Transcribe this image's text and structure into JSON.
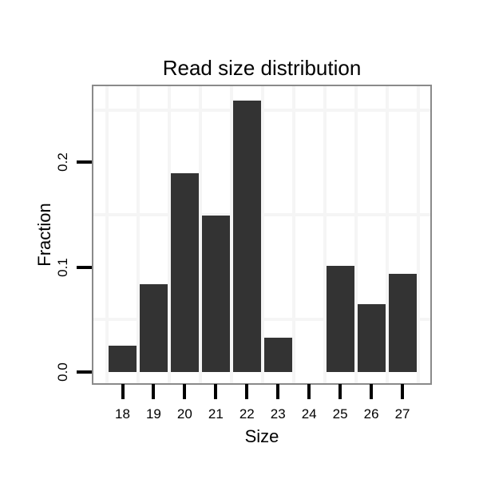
{
  "chart_data": {
    "type": "bar",
    "title": "Read size distribution",
    "xlabel": "Size",
    "ylabel": "Fraction",
    "categories": [
      "18",
      "19",
      "20",
      "21",
      "22",
      "23",
      "24",
      "25",
      "26",
      "27"
    ],
    "values": [
      0.025,
      0.084,
      0.19,
      0.149,
      0.259,
      0.033,
      0,
      0.101,
      0.065,
      0.094
    ],
    "ytick_labels": [
      "0.0",
      "0.1",
      "0.2"
    ],
    "yticks": [
      0.0,
      0.1,
      0.2
    ],
    "ylim": [
      0,
      0.273
    ],
    "minor_grid_y": [
      0.05,
      0.15,
      0.25
    ],
    "grid": "minor gridlines only, very light gray",
    "legend": "none",
    "bar_color": "#333333",
    "panel_border_color": "#8a8a8a",
    "grid_color": "#f5f5f5",
    "tick_color": "#000000",
    "text_color": "#000000"
  }
}
